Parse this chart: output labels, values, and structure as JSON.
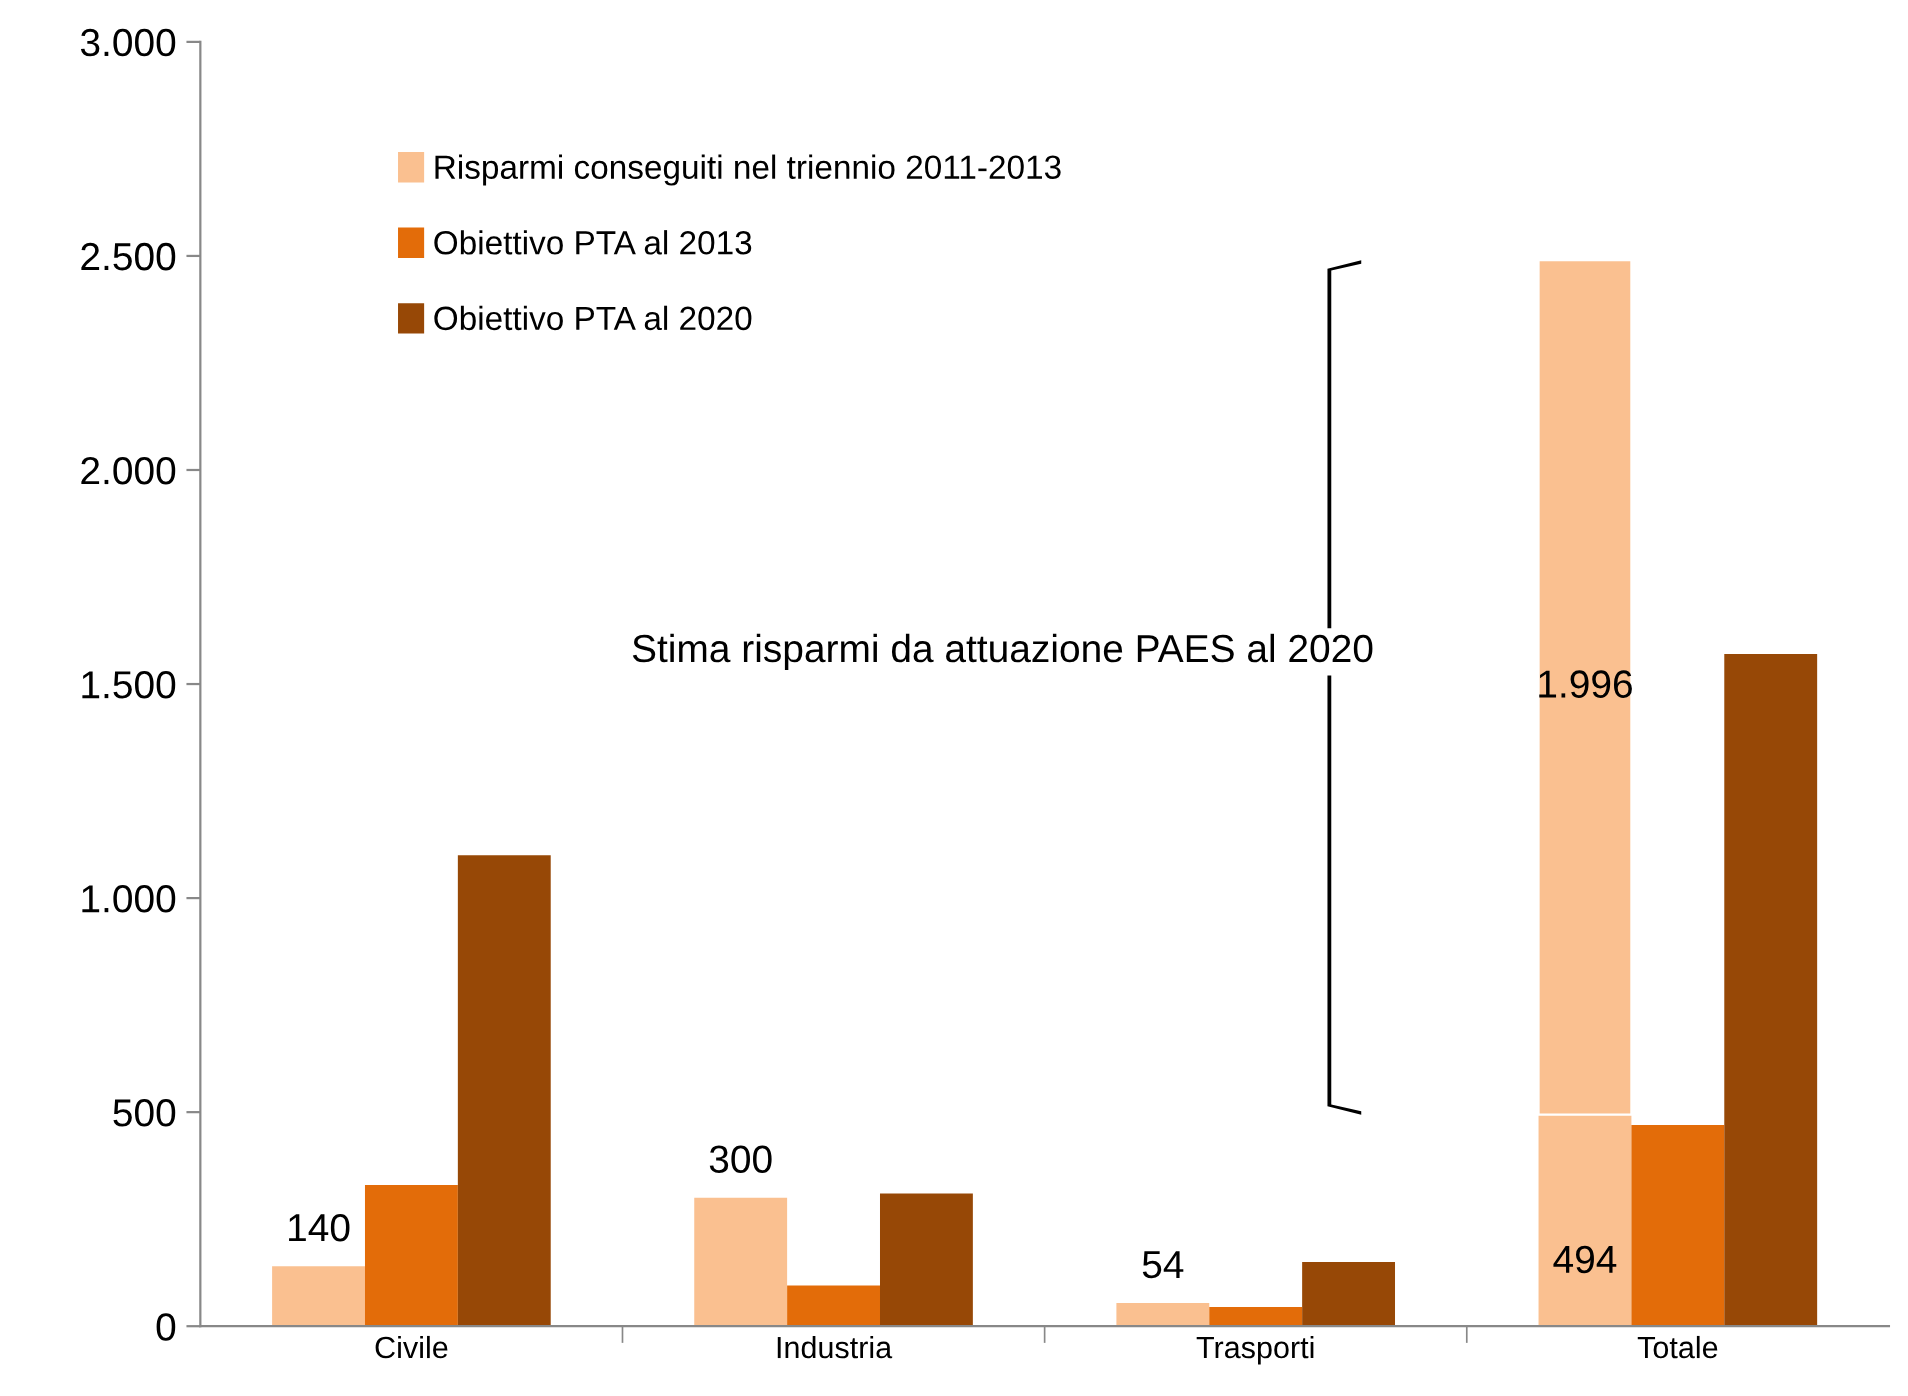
{
  "chart_data": {
    "type": "bar",
    "categories": [
      "Civile",
      "Industria",
      "Trasporti",
      "Totale"
    ],
    "series": [
      {
        "name": "Risparmi conseguiti nel triennio 2011-2013",
        "color": "#fac090",
        "values": [
          140,
          300,
          54,
          494
        ],
        "value_labels": [
          "140",
          "300",
          "54",
          "494"
        ]
      },
      {
        "name": "Obiettivo PTA al 2013",
        "color": "#e36c09",
        "values": [
          330,
          95,
          45,
          470
        ]
      },
      {
        "name": "Obiettivo PTA al 2020",
        "color": "#974806",
        "values": [
          1100,
          310,
          150,
          1570
        ]
      },
      {
        "color": "#fac090",
        "values": [
          null,
          null,
          null,
          1996
        ],
        "base": [
          null,
          null,
          null,
          494
        ],
        "value_labels": [
          null,
          null,
          null,
          "1.996"
        ]
      }
    ],
    "annotations": [
      "Stima risparmi da attuazione PAES al 2020"
    ],
    "ylim": [
      0,
      3000
    ],
    "yticks": [
      {
        "value": 0,
        "label": "0"
      },
      {
        "value": 500,
        "label": "500"
      },
      {
        "value": 1000,
        "label": "1.000"
      },
      {
        "value": 1500,
        "label": "1.500"
      },
      {
        "value": 2000,
        "label": "2.000"
      },
      {
        "value": 2500,
        "label": "2.500"
      },
      {
        "value": 3000,
        "label": "3.000"
      }
    ],
    "legend": "top left",
    "grid": false
  }
}
